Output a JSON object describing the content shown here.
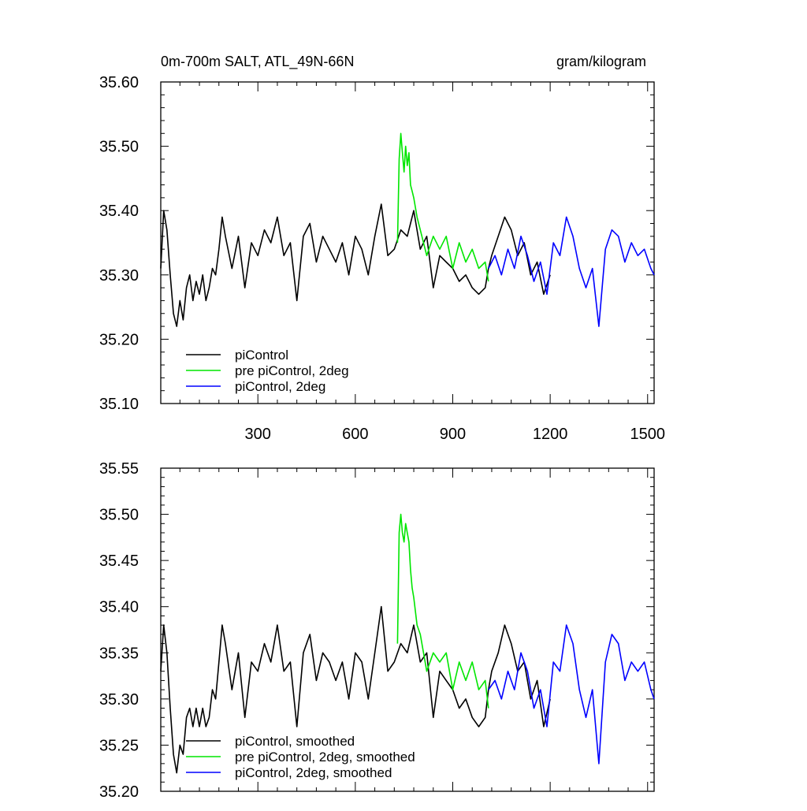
{
  "chart_data": [
    {
      "type": "line",
      "title": "0m-700m SALT, ATL_49N-66N",
      "units": "gram/kilogram",
      "xlim": [
        1,
        1520
      ],
      "ylim": [
        35.1,
        35.6
      ],
      "x_ticks": [
        300,
        600,
        900,
        1200,
        1500
      ],
      "x_tick_labels": [
        "300",
        "600",
        "900",
        "1200",
        "1500"
      ],
      "y_ticks": [
        35.1,
        35.2,
        35.3,
        35.4,
        35.5,
        35.6
      ],
      "y_tick_labels": [
        "35.10",
        "35.20",
        "35.30",
        "35.40",
        "35.50",
        "35.60"
      ],
      "legend_position": "bottom-left",
      "series": [
        {
          "name": "piControl",
          "color": "#000000",
          "x": [
            1,
            10,
            20,
            30,
            40,
            50,
            60,
            70,
            80,
            90,
            100,
            110,
            120,
            130,
            140,
            150,
            160,
            170,
            180,
            190,
            200,
            220,
            240,
            260,
            280,
            300,
            320,
            340,
            360,
            380,
            400,
            420,
            440,
            460,
            480,
            500,
            520,
            540,
            560,
            580,
            600,
            620,
            640,
            660,
            680,
            700,
            720,
            740,
            760,
            780,
            800,
            820,
            840,
            860,
            880,
            900,
            920,
            940,
            960,
            980,
            1000,
            1010,
            1020,
            1040,
            1060,
            1080,
            1100,
            1120,
            1140,
            1160,
            1180,
            1200
          ],
          "values": [
            35.31,
            35.4,
            35.37,
            35.3,
            35.24,
            35.22,
            35.26,
            35.23,
            35.28,
            35.3,
            35.26,
            35.29,
            35.27,
            35.3,
            35.26,
            35.28,
            35.31,
            35.3,
            35.34,
            35.39,
            35.36,
            35.31,
            35.36,
            35.28,
            35.35,
            35.33,
            35.37,
            35.35,
            35.39,
            35.33,
            35.35,
            35.26,
            35.36,
            35.38,
            35.32,
            35.36,
            35.34,
            35.32,
            35.35,
            35.3,
            35.36,
            35.34,
            35.3,
            35.36,
            35.41,
            35.33,
            35.34,
            35.37,
            35.36,
            35.4,
            35.34,
            35.36,
            35.28,
            35.33,
            35.32,
            35.31,
            35.29,
            35.3,
            35.28,
            35.27,
            35.28,
            35.31,
            35.33,
            35.36,
            35.39,
            35.37,
            35.33,
            35.35,
            35.3,
            35.32,
            35.27,
            35.3
          ]
        },
        {
          "name": "pre piControl, 2deg",
          "color": "#00e600",
          "x": [
            730,
            735,
            740,
            745,
            750,
            755,
            760,
            765,
            770,
            775,
            780,
            790,
            800,
            820,
            840,
            860,
            880,
            900,
            920,
            940,
            960,
            980,
            1000,
            1010
          ],
          "values": [
            35.35,
            35.48,
            35.52,
            35.49,
            35.46,
            35.5,
            35.47,
            35.49,
            35.44,
            35.43,
            35.42,
            35.39,
            35.37,
            35.33,
            35.36,
            35.34,
            35.36,
            35.31,
            35.35,
            35.32,
            35.34,
            35.31,
            35.32,
            35.29
          ],
          "first_x": 730
        },
        {
          "name": "piControl, 2deg",
          "color": "#0000ff",
          "x": [
            1010,
            1030,
            1050,
            1070,
            1090,
            1110,
            1130,
            1150,
            1170,
            1190,
            1210,
            1230,
            1250,
            1270,
            1290,
            1310,
            1330,
            1350,
            1370,
            1390,
            1410,
            1430,
            1450,
            1470,
            1490,
            1510,
            1520
          ],
          "values": [
            35.31,
            35.33,
            35.3,
            35.34,
            35.31,
            35.36,
            35.33,
            35.29,
            35.32,
            35.27,
            35.35,
            35.33,
            35.39,
            35.36,
            35.31,
            35.28,
            35.31,
            35.22,
            35.34,
            35.37,
            35.36,
            35.32,
            35.35,
            35.33,
            35.34,
            35.31,
            35.3
          ]
        }
      ]
    },
    {
      "type": "line",
      "xlim": [
        1,
        1520
      ],
      "ylim": [
        35.2,
        35.55
      ],
      "x_ticks": [
        300,
        600,
        900,
        1200,
        1500
      ],
      "y_ticks": [
        35.2,
        35.25,
        35.3,
        35.35,
        35.4,
        35.45,
        35.5,
        35.55
      ],
      "y_tick_labels": [
        "35.20",
        "35.25",
        "35.30",
        "35.35",
        "35.40",
        "35.45",
        "35.50",
        "35.55"
      ],
      "legend_position": "bottom-left",
      "series": [
        {
          "name": "piControl, smoothed",
          "color": "#000000",
          "x": [
            1,
            10,
            20,
            30,
            40,
            50,
            60,
            70,
            80,
            90,
            100,
            110,
            120,
            130,
            140,
            150,
            160,
            170,
            180,
            190,
            200,
            220,
            240,
            260,
            280,
            300,
            320,
            340,
            360,
            380,
            400,
            420,
            440,
            460,
            480,
            500,
            520,
            540,
            560,
            580,
            600,
            620,
            640,
            660,
            680,
            700,
            720,
            740,
            760,
            780,
            800,
            820,
            840,
            860,
            880,
            900,
            920,
            940,
            960,
            980,
            1000,
            1010,
            1020,
            1040,
            1060,
            1080,
            1100,
            1120,
            1140,
            1160,
            1180,
            1200
          ],
          "values": [
            35.33,
            35.38,
            35.35,
            35.29,
            35.24,
            35.22,
            35.25,
            35.24,
            35.28,
            35.29,
            35.27,
            35.29,
            35.27,
            35.29,
            35.27,
            35.28,
            35.31,
            35.3,
            35.34,
            35.38,
            35.36,
            35.31,
            35.35,
            35.28,
            35.34,
            35.33,
            35.36,
            35.34,
            35.38,
            35.33,
            35.34,
            35.27,
            35.35,
            35.37,
            35.32,
            35.35,
            35.34,
            35.32,
            35.34,
            35.3,
            35.35,
            35.34,
            35.3,
            35.35,
            35.4,
            35.33,
            35.34,
            35.36,
            35.35,
            35.38,
            35.34,
            35.35,
            35.28,
            35.33,
            35.32,
            35.31,
            35.29,
            35.3,
            35.28,
            35.27,
            35.28,
            35.31,
            35.33,
            35.35,
            35.38,
            35.36,
            35.33,
            35.34,
            35.3,
            35.32,
            35.27,
            35.3
          ]
        },
        {
          "name": "pre piControl, 2deg, smoothed",
          "color": "#00e600",
          "x": [
            730,
            735,
            740,
            745,
            750,
            755,
            760,
            765,
            770,
            775,
            780,
            790,
            800,
            820,
            840,
            860,
            880,
            900,
            920,
            940,
            960,
            980,
            1000,
            1010
          ],
          "values": [
            35.36,
            35.48,
            35.5,
            35.48,
            35.47,
            35.49,
            35.48,
            35.47,
            35.44,
            35.42,
            35.41,
            35.38,
            35.37,
            35.33,
            35.35,
            35.34,
            35.35,
            35.31,
            35.34,
            35.32,
            35.34,
            35.31,
            35.32,
            35.29
          ]
        },
        {
          "name": "piControl, 2deg, smoothed",
          "color": "#0000ff",
          "x": [
            1010,
            1030,
            1050,
            1070,
            1090,
            1110,
            1130,
            1150,
            1170,
            1190,
            1210,
            1230,
            1250,
            1270,
            1290,
            1310,
            1330,
            1350,
            1370,
            1390,
            1410,
            1430,
            1450,
            1470,
            1490,
            1510,
            1520
          ],
          "values": [
            35.31,
            35.32,
            35.3,
            35.33,
            35.31,
            35.35,
            35.33,
            35.29,
            35.31,
            35.27,
            35.34,
            35.33,
            35.38,
            35.36,
            35.31,
            35.28,
            35.31,
            35.23,
            35.34,
            35.37,
            35.36,
            35.32,
            35.34,
            35.33,
            35.34,
            35.31,
            35.3
          ]
        }
      ]
    }
  ]
}
